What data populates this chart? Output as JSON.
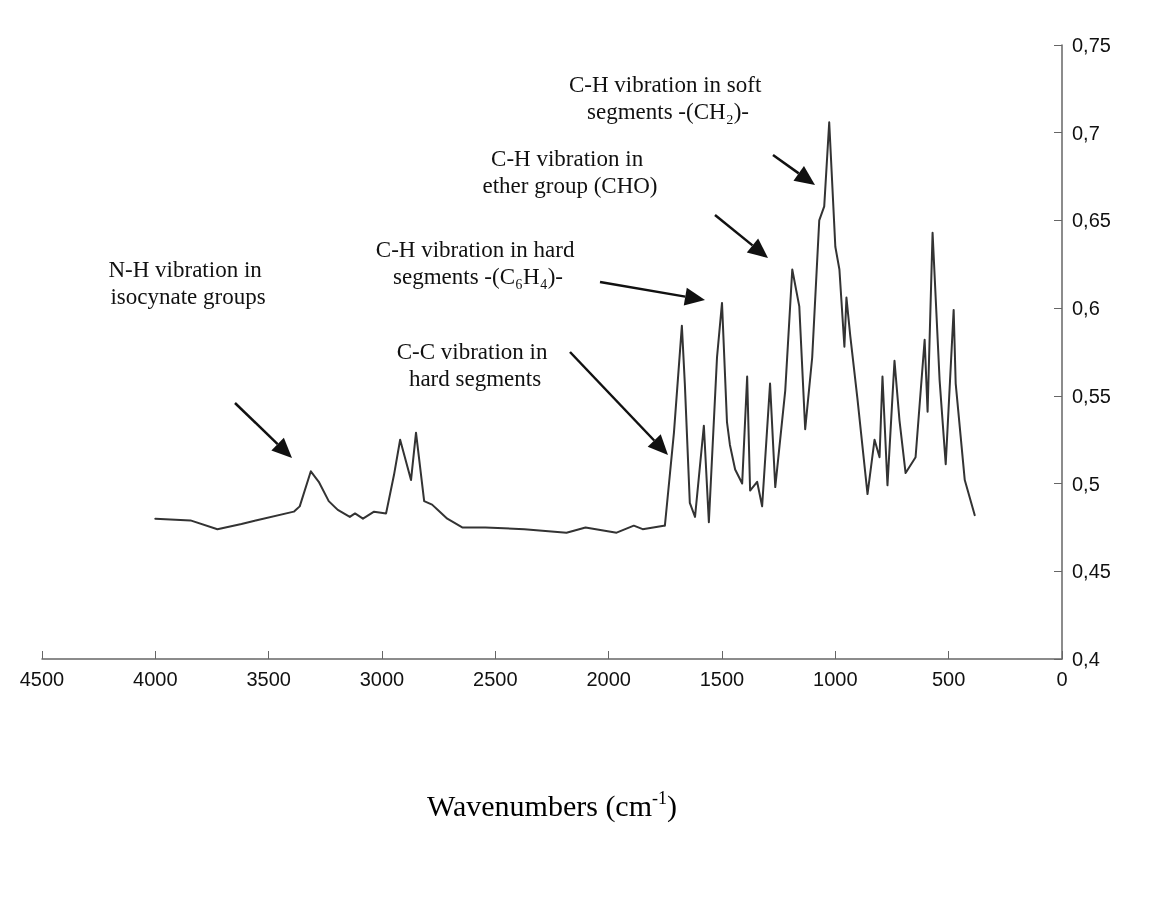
{
  "chart_data": {
    "type": "line",
    "xlabel": "Wavenumbers (cm$^{-1}$)",
    "x": [
      4000,
      3845,
      3726,
      3620,
      3557,
      3389,
      3363,
      3314,
      3279,
      3235,
      3195,
      3142,
      3119,
      3084,
      3035,
      2982,
      2947,
      2920,
      2872,
      2850,
      2814,
      2779,
      2712,
      2646,
      2544,
      2372,
      2186,
      2102,
      1965,
      1889,
      1850,
      1757,
      1752,
      1712,
      1677,
      1664,
      1642,
      1619,
      1580,
      1558,
      1522,
      1500,
      1478,
      1465,
      1442,
      1411,
      1389,
      1376,
      1345,
      1323,
      1288,
      1265,
      1221,
      1190,
      1159,
      1133,
      1102,
      1071,
      1049,
      1027,
      1000,
      982,
      960,
      951,
      934,
      903,
      858,
      827,
      805,
      792,
      770,
      739,
      717,
      690,
      646,
      606,
      593,
      571,
      540,
      513,
      478,
      469,
      429,
      385
    ],
    "series": [
      {
        "color": "#333333",
        "values": [
          0.48,
          0.479,
          0.474,
          0.477,
          0.479,
          0.484,
          0.487,
          0.507,
          0.501,
          0.49,
          0.485,
          0.481,
          0.483,
          0.48,
          0.484,
          0.483,
          0.505,
          0.525,
          0.502,
          0.529,
          0.49,
          0.488,
          0.48,
          0.475,
          0.475,
          0.474,
          0.472,
          0.475,
          0.472,
          0.476,
          0.474,
          0.476,
          0.476,
          0.529,
          0.59,
          0.557,
          0.489,
          0.481,
          0.533,
          0.478,
          0.572,
          0.603,
          0.535,
          0.522,
          0.508,
          0.5,
          0.561,
          0.496,
          0.501,
          0.487,
          0.557,
          0.498,
          0.553,
          0.622,
          0.601,
          0.531,
          0.572,
          0.65,
          0.658,
          0.706,
          0.635,
          0.622,
          0.578,
          0.606,
          0.584,
          0.549,
          0.494,
          0.525,
          0.515,
          0.561,
          0.499,
          0.57,
          0.536,
          0.506,
          0.515,
          0.582,
          0.541,
          0.643,
          0.559,
          0.511,
          0.599,
          0.557,
          0.502,
          0.482
        ]
      }
    ],
    "xlim": [
      4500,
      0
    ],
    "xticks": [
      4500,
      4000,
      3500,
      3000,
      2500,
      2000,
      1500,
      1000,
      500,
      0
    ],
    "ylim": [
      0.4,
      0.75
    ],
    "yticks": [
      {
        "value": 0.4,
        "label": "0,4"
      },
      {
        "value": 0.45,
        "label": "0,45"
      },
      {
        "value": 0.5,
        "label": "0,5"
      },
      {
        "value": 0.55,
        "label": "0,55"
      },
      {
        "value": 0.6,
        "label": "0,6"
      },
      {
        "value": 0.65,
        "label": "0,65"
      },
      {
        "value": 0.7,
        "label": "0,7"
      },
      {
        "value": 0.75,
        "label": "0,75"
      }
    ],
    "annotations": [
      "N-H vibration in isocynate groups",
      "C-C vibration in hard segments",
      "C-H vibration in hard segments -(C₆H₄)-",
      "C-H vibration in ether group (CHO)",
      "C-H vibration in soft segments -(CH₂)-"
    ],
    "grid": false,
    "marker": "none",
    "line_style": "solid"
  }
}
